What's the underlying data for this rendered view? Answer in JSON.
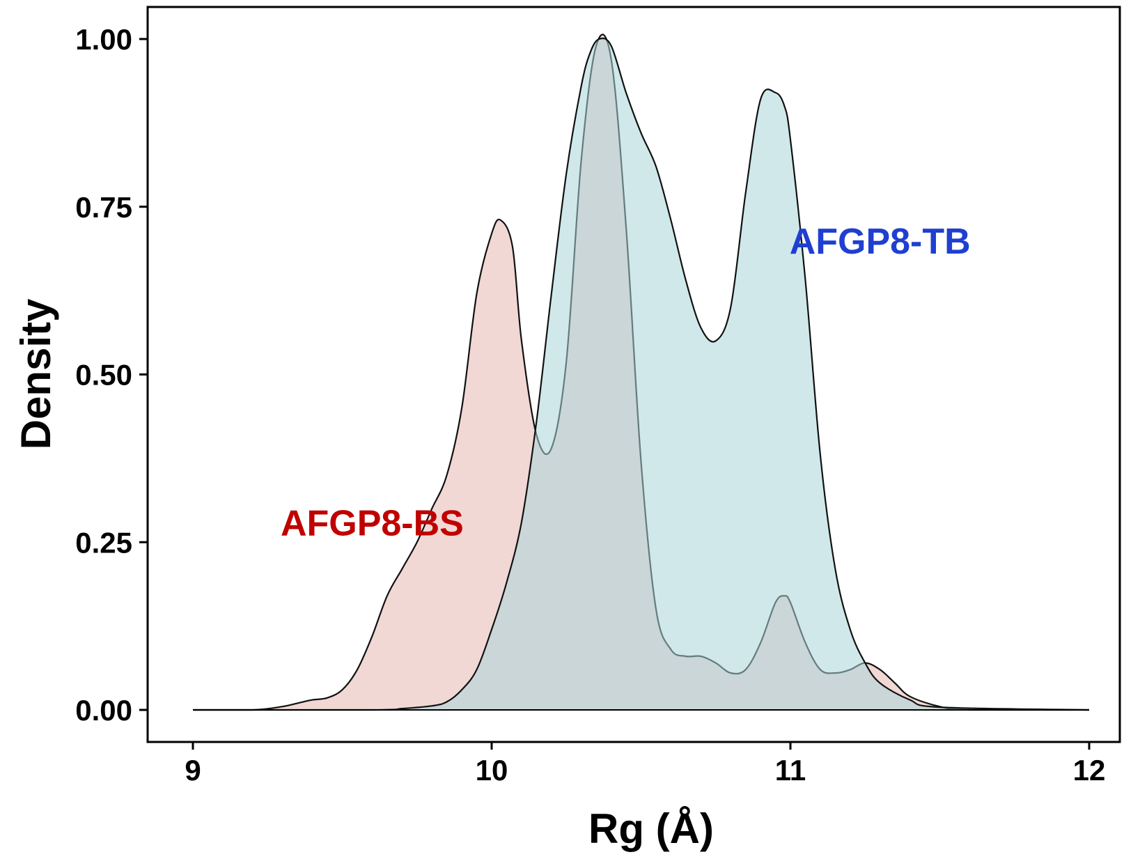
{
  "chart_data": {
    "type": "area",
    "xlabel": "Rg (Å)",
    "ylabel": "Density",
    "xlim": [
      9,
      12
    ],
    "ylim": [
      0,
      1
    ],
    "x_ticks": [
      "9",
      "10",
      "11",
      "12"
    ],
    "y_ticks": [
      "0.00",
      "0.25",
      "0.50",
      "0.75",
      "1.00"
    ],
    "grid": false,
    "legend": "none",
    "annotations": [
      {
        "text": "AFGP8-BS",
        "series": "AFGP8-BS",
        "color": "#c00000",
        "x": 9.6,
        "y": 0.26
      },
      {
        "text": "AFGP8-TB",
        "series": "AFGP8-TB",
        "color": "#1f3fd0",
        "x": 11.3,
        "y": 0.68
      }
    ],
    "series": [
      {
        "name": "AFGP8-BS",
        "fill": "#e6b8b2",
        "fill_opacity": 0.55,
        "x": [
          9.0,
          9.2,
          9.3,
          9.35,
          9.4,
          9.45,
          9.5,
          9.55,
          9.6,
          9.65,
          9.7,
          9.75,
          9.8,
          9.85,
          9.9,
          9.95,
          10.0,
          10.03,
          10.07,
          10.1,
          10.15,
          10.2,
          10.25,
          10.3,
          10.35,
          10.4,
          10.45,
          10.5,
          10.55,
          10.6,
          10.65,
          10.7,
          10.75,
          10.8,
          10.85,
          10.9,
          10.95,
          10.98,
          11.0,
          11.05,
          11.1,
          11.15,
          11.2,
          11.25,
          11.3,
          11.35,
          11.4,
          11.5,
          11.6,
          12.0
        ],
        "y": [
          0.0,
          0.0,
          0.005,
          0.01,
          0.015,
          0.018,
          0.03,
          0.06,
          0.11,
          0.17,
          0.21,
          0.25,
          0.3,
          0.35,
          0.45,
          0.62,
          0.71,
          0.73,
          0.69,
          0.55,
          0.41,
          0.39,
          0.52,
          0.82,
          0.99,
          0.97,
          0.72,
          0.37,
          0.15,
          0.09,
          0.08,
          0.08,
          0.07,
          0.055,
          0.06,
          0.1,
          0.16,
          0.17,
          0.16,
          0.1,
          0.06,
          0.055,
          0.06,
          0.07,
          0.06,
          0.04,
          0.02,
          0.005,
          0.0,
          0.0
        ]
      },
      {
        "name": "AFGP8-TB",
        "fill": "#a9d5d9",
        "fill_opacity": 0.55,
        "x": [
          9.0,
          9.6,
          9.7,
          9.8,
          9.85,
          9.9,
          9.95,
          10.0,
          10.05,
          10.1,
          10.15,
          10.2,
          10.25,
          10.3,
          10.33,
          10.36,
          10.4,
          10.45,
          10.5,
          10.55,
          10.6,
          10.65,
          10.7,
          10.75,
          10.8,
          10.85,
          10.9,
          10.95,
          10.98,
          11.0,
          11.05,
          11.1,
          11.15,
          11.2,
          11.25,
          11.3,
          11.4,
          11.5,
          12.0
        ],
        "y": [
          0.0,
          0.0,
          0.002,
          0.006,
          0.012,
          0.03,
          0.06,
          0.12,
          0.19,
          0.28,
          0.43,
          0.62,
          0.8,
          0.93,
          0.98,
          1.0,
          0.99,
          0.92,
          0.86,
          0.81,
          0.73,
          0.64,
          0.57,
          0.55,
          0.6,
          0.77,
          0.91,
          0.92,
          0.9,
          0.85,
          0.64,
          0.38,
          0.21,
          0.12,
          0.07,
          0.04,
          0.015,
          0.004,
          0.0
        ]
      }
    ]
  }
}
